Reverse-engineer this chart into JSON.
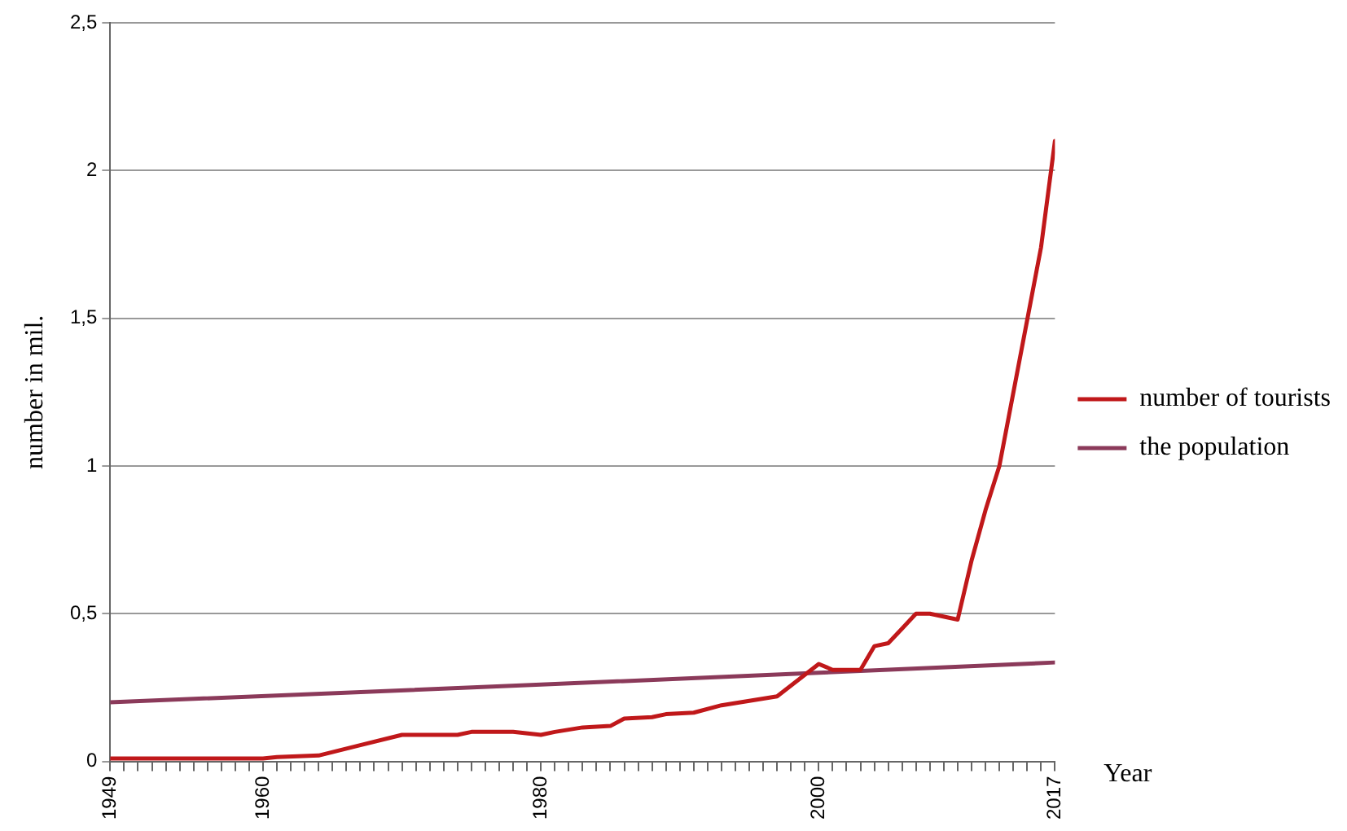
{
  "chart_data": {
    "type": "line",
    "xlabel": "Year",
    "ylabel": "number in mil.",
    "xlim": [
      1949,
      2017
    ],
    "xticks": [
      1949,
      {
        "value": 1950,
        "label": null
      },
      {
        "value": 1951,
        "label": null
      },
      {
        "value": 1952,
        "label": null
      },
      {
        "value": 1953,
        "label": null
      },
      {
        "value": 1954,
        "label": null
      },
      {
        "value": 1955,
        "label": null
      },
      {
        "value": 1956,
        "label": null
      },
      {
        "value": 1957,
        "label": null
      },
      {
        "value": 1958,
        "label": null
      },
      {
        "value": 1959,
        "label": null
      },
      1960,
      {
        "value": 1961,
        "label": null
      },
      {
        "value": 1962,
        "label": null
      },
      {
        "value": 1963,
        "label": null
      },
      {
        "value": 1964,
        "label": null
      },
      {
        "value": 1965,
        "label": null
      },
      {
        "value": 1966,
        "label": null
      },
      {
        "value": 1967,
        "label": null
      },
      {
        "value": 1968,
        "label": null
      },
      {
        "value": 1969,
        "label": null
      },
      {
        "value": 1970,
        "label": null
      },
      {
        "value": 1971,
        "label": null
      },
      {
        "value": 1972,
        "label": null
      },
      {
        "value": 1973,
        "label": null
      },
      {
        "value": 1974,
        "label": null
      },
      {
        "value": 1975,
        "label": null
      },
      {
        "value": 1976,
        "label": null
      },
      {
        "value": 1977,
        "label": null
      },
      {
        "value": 1978,
        "label": null
      },
      {
        "value": 1979,
        "label": null
      },
      1980,
      {
        "value": 1981,
        "label": null
      },
      {
        "value": 1982,
        "label": null
      },
      {
        "value": 1983,
        "label": null
      },
      {
        "value": 1984,
        "label": null
      },
      {
        "value": 1985,
        "label": null
      },
      {
        "value": 1986,
        "label": null
      },
      {
        "value": 1987,
        "label": null
      },
      {
        "value": 1988,
        "label": null
      },
      {
        "value": 1989,
        "label": null
      },
      {
        "value": 1990,
        "label": null
      },
      {
        "value": 1991,
        "label": null
      },
      {
        "value": 1992,
        "label": null
      },
      {
        "value": 1993,
        "label": null
      },
      {
        "value": 1994,
        "label": null
      },
      {
        "value": 1995,
        "label": null
      },
      {
        "value": 1996,
        "label": null
      },
      {
        "value": 1997,
        "label": null
      },
      {
        "value": 1998,
        "label": null
      },
      {
        "value": 1999,
        "label": null
      },
      2000,
      {
        "value": 2001,
        "label": null
      },
      {
        "value": 2002,
        "label": null
      },
      {
        "value": 2003,
        "label": null
      },
      {
        "value": 2004,
        "label": null
      },
      {
        "value": 2005,
        "label": null
      },
      {
        "value": 2006,
        "label": null
      },
      {
        "value": 2007,
        "label": null
      },
      {
        "value": 2008,
        "label": null
      },
      {
        "value": 2009,
        "label": null
      },
      {
        "value": 2010,
        "label": null
      },
      {
        "value": 2011,
        "label": null
      },
      {
        "value": 2012,
        "label": null
      },
      {
        "value": 2013,
        "label": null
      },
      {
        "value": 2014,
        "label": null
      },
      {
        "value": 2015,
        "label": null
      },
      {
        "value": 2016,
        "label": null
      },
      2017
    ],
    "ylim": [
      0,
      2.5
    ],
    "yticks": [
      0,
      {
        "value": 0.5,
        "label": "0,5"
      },
      1,
      {
        "value": 1.5,
        "label": "1,5"
      },
      2,
      {
        "value": 2.5,
        "label": "2,5"
      }
    ],
    "grid": "y",
    "legend": "right",
    "marker": "none",
    "line_style": "solid",
    "series": [
      {
        "name": "number of tourists",
        "color": "#c0181a",
        "x": [
          1949,
          1960,
          1961,
          1964,
          1967,
          1970,
          1974,
          1975,
          1978,
          1980,
          1981,
          1983,
          1985,
          1986,
          1988,
          1989,
          1991,
          1993,
          1997,
          2000,
          2001,
          2003,
          2004,
          2005,
          2006,
          2007,
          2008,
          2010,
          2011,
          2012,
          2013,
          2016,
          2017
        ],
        "values": [
          0.01,
          0.01,
          0.015,
          0.02,
          0.055,
          0.09,
          0.09,
          0.1,
          0.1,
          0.09,
          0.1,
          0.115,
          0.12,
          0.145,
          0.15,
          0.16,
          0.165,
          0.19,
          0.22,
          0.33,
          0.31,
          0.31,
          0.39,
          0.4,
          0.45,
          0.5,
          0.5,
          0.48,
          0.68,
          0.85,
          1.0,
          1.74,
          2.1
        ]
      },
      {
        "name": "the population",
        "color": "#8b3a5a",
        "x": [
          1949,
          1980,
          2000,
          2017
        ],
        "values": [
          0.2,
          0.26,
          0.3,
          0.335
        ]
      }
    ]
  }
}
